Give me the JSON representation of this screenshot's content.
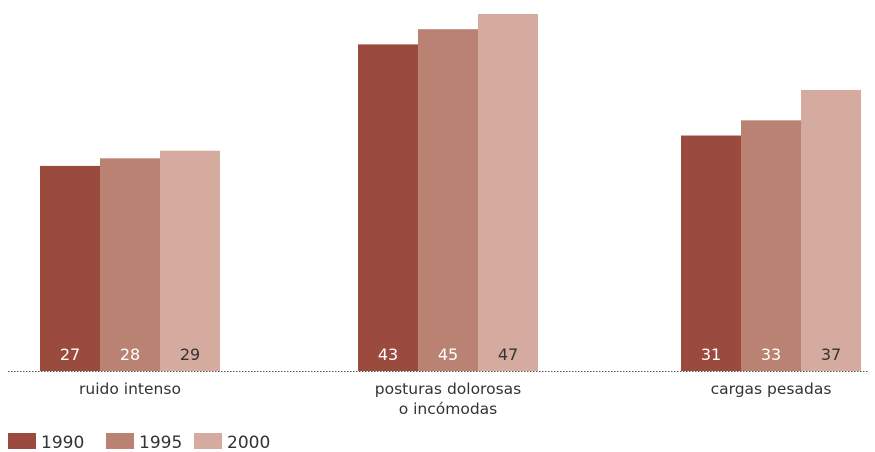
{
  "chart_data": {
    "type": "bar",
    "categories": [
      [
        "ruido intenso"
      ],
      [
        "posturas dolorosas",
        "o incómodas"
      ],
      [
        "cargas pesadas"
      ]
    ],
    "series": [
      {
        "name": "1990",
        "color": "#9b4a3e",
        "values": [
          27,
          43,
          31
        ],
        "label_color": "#ffffff"
      },
      {
        "name": "1995",
        "color": "#b98272",
        "values": [
          28,
          45,
          33
        ],
        "label_color": "#ffffff"
      },
      {
        "name": "2000",
        "color": "#d4ab9e",
        "values": [
          29,
          47,
          37
        ],
        "label_color": "#333333"
      }
    ],
    "title": "",
    "xlabel": "",
    "ylabel": "",
    "ylim": [
      0,
      47
    ],
    "grid": false,
    "legend_position": "bottom-left",
    "baseline_style": "dotted"
  }
}
